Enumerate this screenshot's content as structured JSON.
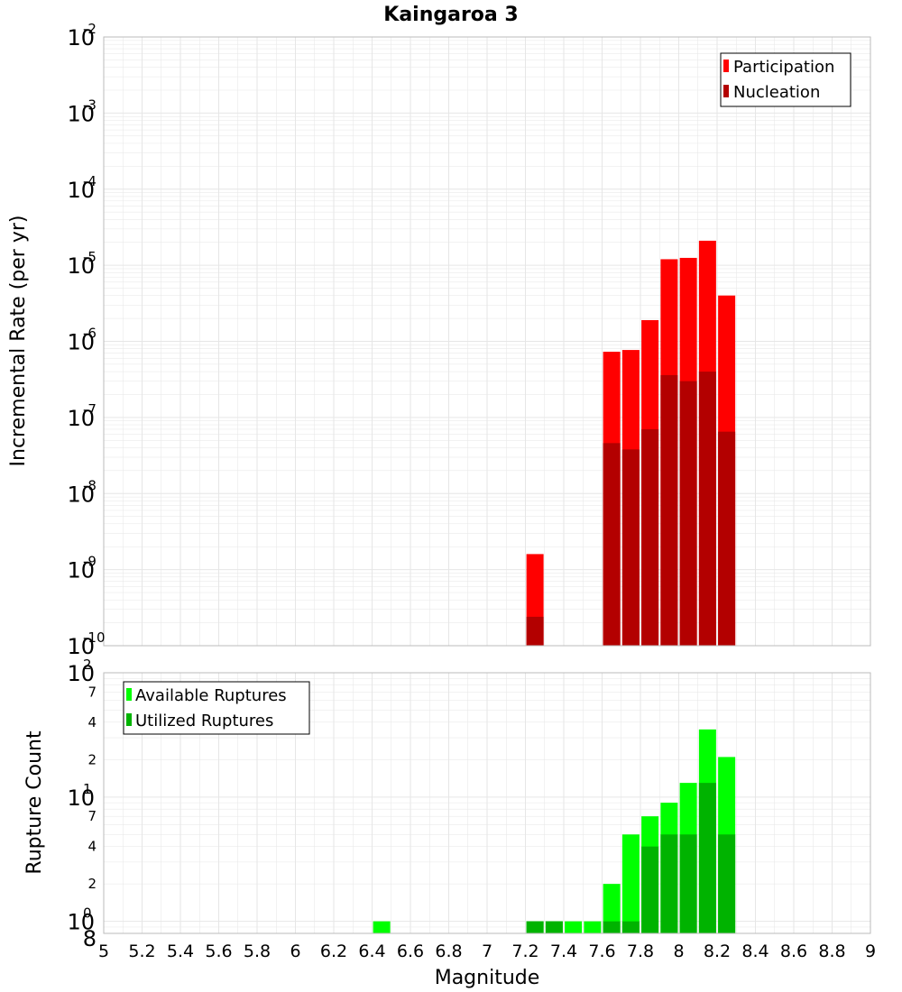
{
  "colors": {
    "participation": "#ff0000",
    "nucleation": "#b30000",
    "available": "#00ff00",
    "utilized": "#00b300",
    "grid": "#e6e6e6",
    "frame": "#bbbbbb"
  },
  "chart_data": [
    {
      "type": "bar",
      "title": "Kaingaroa 3",
      "xlabel": "Magnitude",
      "ylabel": "Incremental Rate (per yr)",
      "yscale": "log",
      "ylim": [
        1e-10,
        0.01
      ],
      "xlim": [
        5,
        9
      ],
      "y_ticks": [
        {
          "base": "10",
          "exp": "-10"
        },
        {
          "base": "10",
          "exp": "-9"
        },
        {
          "base": "10",
          "exp": "-8"
        },
        {
          "base": "10",
          "exp": "-7"
        },
        {
          "base": "10",
          "exp": "-6"
        },
        {
          "base": "10",
          "exp": "-5"
        },
        {
          "base": "10",
          "exp": "-4"
        },
        {
          "base": "10",
          "exp": "-3"
        },
        {
          "base": "10",
          "exp": "-2"
        }
      ],
      "legend": [
        "Participation",
        "Nucleation"
      ],
      "legend_position": "top-right",
      "grid": true,
      "series": [
        {
          "name": "Participation",
          "x": [
            7.25,
            7.65,
            7.75,
            7.85,
            7.95,
            8.05,
            8.15,
            8.25
          ],
          "values": [
            1.6e-09,
            7.3e-07,
            7.7e-07,
            1.9e-06,
            1.2e-05,
            1.25e-05,
            2.1e-05,
            4e-06
          ]
        },
        {
          "name": "Nucleation",
          "x": [
            7.25,
            7.65,
            7.75,
            7.85,
            7.95,
            8.05,
            8.15,
            8.25
          ],
          "values": [
            2.4e-10,
            4.6e-08,
            3.8e-08,
            7e-08,
            3.6e-07,
            3e-07,
            4e-07,
            6.5e-08
          ]
        }
      ]
    },
    {
      "type": "bar",
      "title": "",
      "xlabel": "Magnitude",
      "ylabel": "Rupture Count",
      "yscale": "log",
      "ylim": [
        0.8,
        100
      ],
      "xlim": [
        5,
        9
      ],
      "x_ticks": [
        "5",
        "5.2",
        "5.4",
        "5.6",
        "5.8",
        "6",
        "6.2",
        "6.4",
        "6.6",
        "6.8",
        "7",
        "7.2",
        "7.4",
        "7.6",
        "7.8",
        "8",
        "8.2",
        "8.4",
        "8.6",
        "8.8",
        "9"
      ],
      "y_ticks": [
        {
          "base": "10",
          "exp": "0"
        },
        {
          "base": "10",
          "exp": "1"
        },
        {
          "base": "10",
          "exp": "2"
        }
      ],
      "y_minor_labels": [
        "8",
        "2",
        "4",
        "7",
        "2",
        "4",
        "7"
      ],
      "legend": [
        "Available Ruptures",
        "Utilized Ruptures"
      ],
      "legend_position": "top-left",
      "grid": true,
      "series": [
        {
          "name": "Available Ruptures",
          "x": [
            6.45,
            7.25,
            7.35,
            7.45,
            7.55,
            7.65,
            7.75,
            7.85,
            7.95,
            8.05,
            8.15,
            8.25
          ],
          "values": [
            1,
            1,
            1,
            1,
            1,
            2,
            5,
            7,
            9,
            13,
            35,
            21
          ]
        },
        {
          "name": "Utilized Ruptures",
          "x": [
            7.25,
            7.35,
            7.65,
            7.75,
            7.85,
            7.95,
            8.05,
            8.15,
            8.25
          ],
          "values": [
            1,
            1,
            1,
            1,
            4,
            5,
            5,
            13,
            5
          ]
        }
      ]
    }
  ]
}
